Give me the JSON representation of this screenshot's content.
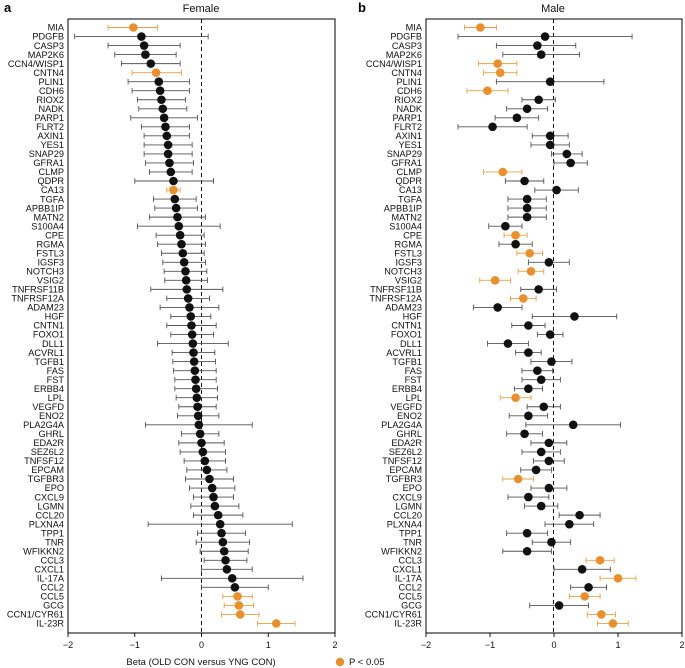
{
  "colors": {
    "significant": "#E8902E",
    "nonsignificant": "#111111",
    "errorbar_sig": "#E8A04A",
    "errorbar_nonsig": "#555555"
  },
  "legend": {
    "label": "P < 0.05"
  },
  "chart_data": [
    {
      "type": "forest",
      "panel_letter": "a",
      "title": "Female",
      "xlabel": "Beta (OLD CON versus YNG CON)",
      "xlim": [
        -2,
        2
      ],
      "xticks": [
        -2,
        -1,
        0,
        1,
        2
      ],
      "reference_line": 0,
      "genes": [
        "MIA",
        "PDGFB",
        "CASP3",
        "MAP2K6",
        "CCN4/WISP1",
        "CNTN4",
        "PLIN1",
        "CDH6",
        "RIOX2",
        "NADK",
        "PARP1",
        "FLRT2",
        "AXIN1",
        "YES1",
        "SNAP29",
        "GFRA1",
        "CLMP",
        "QDPR",
        "CA13",
        "TGFA",
        "APBB1IP",
        "MATN2",
        "S100A4",
        "CPE",
        "RGMA",
        "FSTL3",
        "IGSF3",
        "NOTCH3",
        "VSIG2",
        "TNFRSF11B",
        "TNFRSF12A",
        "ADAM23",
        "HGF",
        "CNTN1",
        "FOXO1",
        "DLL1",
        "ACVRL1",
        "TGFB1",
        "FAS",
        "FST",
        "ERBB4",
        "LPL",
        "VEGFD",
        "ENO2",
        "PLA2G4A",
        "GHRL",
        "EDA2R",
        "SEZ6L2",
        "TNFSF12",
        "EPCAM",
        "TGFBR3",
        "EPO",
        "CXCL9",
        "LGMN",
        "CCL20",
        "PLXNA4",
        "TPP1",
        "TNR",
        "WFIKKN2",
        "CCL3",
        "CXCL1",
        "IL-17A",
        "CCL2",
        "CCL5",
        "GCG",
        "CCN1/CYR61",
        "IL-23R"
      ],
      "beta": [
        -1.02,
        -0.9,
        -0.86,
        -0.84,
        -0.76,
        -0.68,
        -0.64,
        -0.62,
        -0.6,
        -0.58,
        -0.56,
        -0.54,
        -0.52,
        -0.5,
        -0.5,
        -0.48,
        -0.46,
        -0.42,
        -0.42,
        -0.4,
        -0.38,
        -0.36,
        -0.34,
        -0.32,
        -0.3,
        -0.28,
        -0.26,
        -0.24,
        -0.23,
        -0.22,
        -0.2,
        -0.18,
        -0.16,
        -0.15,
        -0.14,
        -0.13,
        -0.12,
        -0.11,
        -0.1,
        -0.09,
        -0.08,
        -0.07,
        -0.06,
        -0.05,
        -0.04,
        -0.02,
        0.0,
        0.02,
        0.05,
        0.08,
        0.12,
        0.16,
        0.18,
        0.2,
        0.25,
        0.28,
        0.3,
        0.32,
        0.34,
        0.36,
        0.38,
        0.46,
        0.5,
        0.54,
        0.56,
        0.58,
        1.12
      ],
      "ci_low": [
        -1.4,
        -1.9,
        -1.4,
        -1.3,
        -1.2,
        -1.04,
        -1.1,
        -1.04,
        -0.96,
        -0.94,
        -1.06,
        -0.9,
        -0.86,
        -0.86,
        -0.86,
        -0.84,
        -0.78,
        -1.0,
        -0.52,
        -0.72,
        -0.7,
        -0.78,
        -0.96,
        -0.68,
        -0.66,
        -0.6,
        -0.58,
        -0.56,
        -0.55,
        -0.76,
        -0.52,
        -0.62,
        -0.46,
        -0.52,
        -0.46,
        -0.66,
        -0.44,
        -0.43,
        -0.42,
        -0.4,
        -0.4,
        -0.38,
        -0.34,
        -0.36,
        -0.84,
        -0.3,
        -0.34,
        -0.32,
        -0.26,
        -0.22,
        -0.24,
        -0.18,
        -0.12,
        -0.16,
        -0.12,
        -0.8,
        -0.06,
        -0.08,
        -0.02,
        0.04,
        0.0,
        -0.6,
        0.0,
        0.32,
        0.34,
        0.3,
        0.84
      ],
      "ci_high": [
        -0.66,
        0.1,
        -0.32,
        -0.38,
        -0.32,
        -0.3,
        -0.18,
        -0.18,
        -0.24,
        -0.22,
        -0.06,
        -0.18,
        -0.18,
        -0.14,
        -0.14,
        -0.12,
        -0.14,
        0.18,
        -0.32,
        -0.08,
        -0.06,
        0.06,
        0.28,
        0.04,
        0.06,
        0.04,
        0.06,
        0.08,
        0.09,
        0.32,
        0.12,
        0.26,
        0.14,
        0.22,
        0.18,
        0.4,
        0.2,
        0.21,
        0.22,
        0.22,
        0.24,
        0.24,
        0.22,
        0.26,
        0.76,
        0.26,
        0.34,
        0.36,
        0.36,
        0.38,
        0.48,
        0.5,
        0.48,
        0.56,
        0.62,
        1.36,
        0.66,
        0.72,
        0.7,
        0.68,
        0.76,
        1.52,
        1.0,
        0.76,
        0.78,
        0.86,
        1.4
      ],
      "significant": [
        true,
        false,
        false,
        false,
        false,
        true,
        false,
        false,
        false,
        false,
        false,
        false,
        false,
        false,
        false,
        false,
        false,
        false,
        true,
        false,
        false,
        false,
        false,
        false,
        false,
        false,
        false,
        false,
        false,
        false,
        false,
        false,
        false,
        false,
        false,
        false,
        false,
        false,
        false,
        false,
        false,
        false,
        false,
        false,
        false,
        false,
        false,
        false,
        false,
        false,
        false,
        false,
        false,
        false,
        false,
        false,
        false,
        false,
        false,
        false,
        false,
        false,
        false,
        true,
        true,
        true,
        true
      ]
    },
    {
      "type": "forest",
      "panel_letter": "b",
      "title": "Male",
      "xlabel": "",
      "xlim": [
        -2,
        2
      ],
      "xticks": [
        -2,
        -1,
        0,
        1,
        2
      ],
      "reference_line": 0,
      "genes": [
        "MIA",
        "PDGFB",
        "CASP3",
        "MAP2K6",
        "CCN4/WISP1",
        "CNTN4",
        "PLIN1",
        "CDH6",
        "RIOX2",
        "NADK",
        "PARP1",
        "FLRT2",
        "AXIN1",
        "YES1",
        "SNAP29",
        "GFRA1",
        "CLMP",
        "QDPR",
        "CA13",
        "TGFA",
        "APBB1IP",
        "MATN2",
        "S100A4",
        "CPE",
        "RGMA",
        "FSTL3",
        "IGSF3",
        "NOTCH3",
        "VSIG2",
        "TNFRSF11B",
        "TNFRSF12A",
        "ADAM23",
        "HGF",
        "CNTN1",
        "FOXO1",
        "DLL1",
        "ACVRL1",
        "TGFB1",
        "FAS",
        "FST",
        "ERBB4",
        "LPL",
        "VEGFD",
        "ENO2",
        "PLA2G4A",
        "GHRL",
        "EDA2R",
        "SEZ6L2",
        "TNFSF12",
        "EPCAM",
        "TGFBR3",
        "EPO",
        "CXCL9",
        "LGMN",
        "CCL20",
        "PLXNA4",
        "TPP1",
        "TNR",
        "WFIKKN2",
        "CCL3",
        "CXCL1",
        "IL-17A",
        "CCL2",
        "CCL5",
        "GCG",
        "CCN1/CYR61",
        "IL-23R"
      ],
      "beta": [
        -1.15,
        -0.14,
        -0.26,
        -0.2,
        -0.88,
        -0.84,
        -0.06,
        -1.04,
        -0.24,
        -0.42,
        -0.58,
        -0.96,
        -0.06,
        -0.06,
        0.2,
        0.26,
        -0.8,
        -0.46,
        0.04,
        -0.42,
        -0.42,
        -0.42,
        -0.76,
        -0.6,
        -0.6,
        -0.38,
        -0.08,
        -0.36,
        -0.92,
        -0.24,
        -0.48,
        -0.88,
        0.32,
        -0.4,
        -0.06,
        -0.72,
        -0.4,
        -0.04,
        -0.26,
        -0.2,
        -0.4,
        -0.6,
        -0.16,
        -0.4,
        0.3,
        -0.46,
        -0.08,
        -0.2,
        -0.08,
        -0.28,
        -0.56,
        -0.08,
        -0.4,
        -0.2,
        0.4,
        0.24,
        -0.42,
        -0.04,
        -0.42,
        0.72,
        0.44,
        1.0,
        0.54,
        0.48,
        0.08,
        0.74,
        0.92
      ],
      "ci_low": [
        -1.4,
        -1.5,
        -0.9,
        -0.8,
        -1.18,
        -1.1,
        -0.9,
        -1.36,
        -0.5,
        -0.74,
        -0.92,
        -1.5,
        -0.34,
        -0.36,
        -0.04,
        0.0,
        -1.1,
        -0.76,
        -0.3,
        -0.72,
        -0.72,
        -0.72,
        -1.02,
        -0.78,
        -0.86,
        -0.58,
        -0.4,
        -0.56,
        -1.16,
        -0.52,
        -0.68,
        -1.26,
        -0.34,
        -0.66,
        -0.26,
        -1.04,
        -0.6,
        -0.36,
        -0.5,
        -0.5,
        -0.62,
        -0.84,
        -0.42,
        -0.7,
        -0.44,
        -0.74,
        -0.36,
        -0.5,
        -0.32,
        -0.52,
        -0.8,
        -0.36,
        -0.72,
        -0.46,
        0.08,
        -0.14,
        -0.74,
        -0.34,
        -0.8,
        0.5,
        0.0,
        0.72,
        0.26,
        0.24,
        -0.38,
        0.52,
        0.68
      ],
      "ci_high": [
        -0.9,
        1.22,
        0.34,
        0.4,
        -0.58,
        -0.58,
        0.78,
        -0.72,
        0.02,
        -0.1,
        -0.24,
        -0.42,
        0.22,
        0.24,
        0.44,
        0.52,
        -0.5,
        -0.16,
        0.38,
        -0.12,
        -0.12,
        -0.12,
        -0.5,
        -0.42,
        -0.34,
        -0.18,
        0.24,
        -0.16,
        -0.68,
        0.04,
        -0.28,
        -0.5,
        0.98,
        -0.14,
        0.14,
        -0.4,
        -0.2,
        0.28,
        -0.02,
        0.1,
        -0.18,
        -0.36,
        0.1,
        -0.1,
        1.04,
        -0.18,
        0.2,
        0.1,
        0.16,
        -0.04,
        -0.32,
        0.2,
        -0.08,
        0.06,
        0.72,
        0.62,
        -0.1,
        0.26,
        -0.04,
        0.94,
        0.88,
        1.28,
        0.82,
        0.72,
        0.54,
        0.96,
        1.16
      ],
      "significant": [
        true,
        false,
        false,
        false,
        true,
        true,
        false,
        true,
        false,
        false,
        false,
        false,
        false,
        false,
        false,
        false,
        true,
        false,
        false,
        false,
        false,
        false,
        false,
        true,
        false,
        true,
        false,
        true,
        true,
        false,
        true,
        false,
        false,
        false,
        false,
        false,
        false,
        false,
        false,
        false,
        false,
        true,
        false,
        false,
        false,
        false,
        false,
        false,
        false,
        false,
        true,
        false,
        false,
        false,
        false,
        false,
        false,
        false,
        false,
        true,
        false,
        true,
        false,
        true,
        false,
        true,
        true
      ]
    }
  ]
}
